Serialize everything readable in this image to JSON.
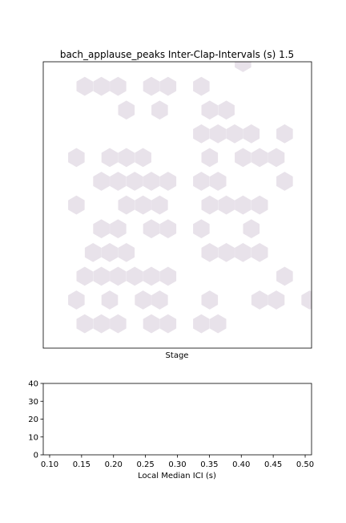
{
  "figure": {
    "background": "#ffffff"
  },
  "chart_data": [
    {
      "type": "heatmap",
      "subtype": "hexbin",
      "title": "bach_applause_peaks Inter-Clap-Intervals (s) 1.5",
      "xlabel": "Stage",
      "ylabel": "",
      "show_x_ticks": false,
      "show_y_ticks": false,
      "grid": false,
      "hex_color": "#e8e2ea",
      "cells": [
        {
          "col": 10.5,
          "row": 0
        },
        {
          "col": 1,
          "row": 1
        },
        {
          "col": 2,
          "row": 1
        },
        {
          "col": 3,
          "row": 1
        },
        {
          "col": 5,
          "row": 1
        },
        {
          "col": 6,
          "row": 1
        },
        {
          "col": 8,
          "row": 1
        },
        {
          "col": 3.5,
          "row": 2
        },
        {
          "col": 5.5,
          "row": 2
        },
        {
          "col": 8.5,
          "row": 2
        },
        {
          "col": 9.5,
          "row": 2
        },
        {
          "col": 8,
          "row": 3
        },
        {
          "col": 9,
          "row": 3
        },
        {
          "col": 10,
          "row": 3
        },
        {
          "col": 11,
          "row": 3
        },
        {
          "col": 13,
          "row": 3
        },
        {
          "col": 0.5,
          "row": 4
        },
        {
          "col": 2.5,
          "row": 4
        },
        {
          "col": 3.5,
          "row": 4
        },
        {
          "col": 4.5,
          "row": 4
        },
        {
          "col": 8.5,
          "row": 4
        },
        {
          "col": 10.5,
          "row": 4
        },
        {
          "col": 11.5,
          "row": 4
        },
        {
          "col": 12.5,
          "row": 4
        },
        {
          "col": 2,
          "row": 5
        },
        {
          "col": 3,
          "row": 5
        },
        {
          "col": 4,
          "row": 5
        },
        {
          "col": 5,
          "row": 5
        },
        {
          "col": 6,
          "row": 5
        },
        {
          "col": 8,
          "row": 5
        },
        {
          "col": 9,
          "row": 5
        },
        {
          "col": 13,
          "row": 5
        },
        {
          "col": 0.5,
          "row": 6
        },
        {
          "col": 3.5,
          "row": 6
        },
        {
          "col": 4.5,
          "row": 6
        },
        {
          "col": 5.5,
          "row": 6
        },
        {
          "col": 8.5,
          "row": 6
        },
        {
          "col": 9.5,
          "row": 6
        },
        {
          "col": 10.5,
          "row": 6
        },
        {
          "col": 11.5,
          "row": 6
        },
        {
          "col": 2,
          "row": 7
        },
        {
          "col": 3,
          "row": 7
        },
        {
          "col": 5,
          "row": 7
        },
        {
          "col": 6,
          "row": 7
        },
        {
          "col": 8,
          "row": 7
        },
        {
          "col": 11,
          "row": 7
        },
        {
          "col": 1.5,
          "row": 8
        },
        {
          "col": 2.5,
          "row": 8
        },
        {
          "col": 3.5,
          "row": 8
        },
        {
          "col": 8.5,
          "row": 8
        },
        {
          "col": 9.5,
          "row": 8
        },
        {
          "col": 10.5,
          "row": 8
        },
        {
          "col": 11.5,
          "row": 8
        },
        {
          "col": 1,
          "row": 9
        },
        {
          "col": 2,
          "row": 9
        },
        {
          "col": 3,
          "row": 9
        },
        {
          "col": 4,
          "row": 9
        },
        {
          "col": 5,
          "row": 9
        },
        {
          "col": 6,
          "row": 9
        },
        {
          "col": 13,
          "row": 9
        },
        {
          "col": 0.5,
          "row": 10
        },
        {
          "col": 2.5,
          "row": 10
        },
        {
          "col": 4.5,
          "row": 10
        },
        {
          "col": 5.5,
          "row": 10
        },
        {
          "col": 8.5,
          "row": 10
        },
        {
          "col": 11.5,
          "row": 10
        },
        {
          "col": 12.5,
          "row": 10
        },
        {
          "col": 14.5,
          "row": 10
        },
        {
          "col": 1,
          "row": 11
        },
        {
          "col": 2,
          "row": 11
        },
        {
          "col": 3,
          "row": 11
        },
        {
          "col": 5,
          "row": 11
        },
        {
          "col": 6,
          "row": 11
        },
        {
          "col": 8,
          "row": 11
        },
        {
          "col": 9,
          "row": 11
        }
      ]
    },
    {
      "type": "line",
      "title": "",
      "xlabel": "Local Median ICI (s)",
      "ylabel": "",
      "xlim": [
        0.09,
        0.51
      ],
      "ylim": [
        0,
        40
      ],
      "xticks": [
        "0.10",
        "0.15",
        "0.20",
        "0.25",
        "0.30",
        "0.35",
        "0.40",
        "0.45",
        "0.50"
      ],
      "yticks": [
        "0",
        "10",
        "20",
        "30",
        "40"
      ],
      "xtick_values": [
        0.1,
        0.15,
        0.2,
        0.25,
        0.3,
        0.35,
        0.4,
        0.45,
        0.5
      ],
      "ytick_values": [
        0,
        10,
        20,
        30,
        40
      ],
      "series": [],
      "grid": false
    }
  ]
}
